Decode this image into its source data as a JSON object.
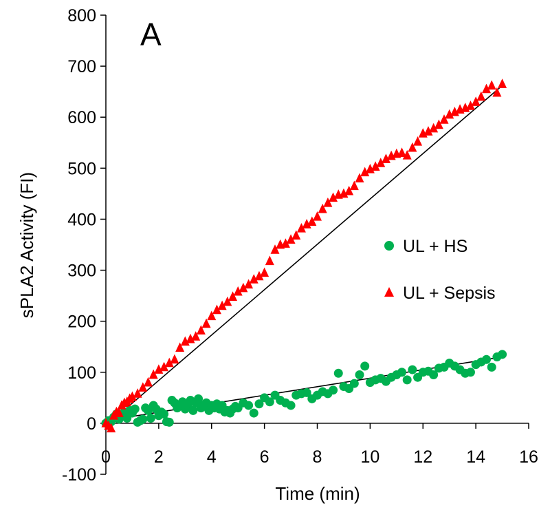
{
  "chart_data": {
    "type": "scatter",
    "panel_label": "A",
    "title": "",
    "xlabel": "Time (min)",
    "ylabel": "sPLA2 Activity (FI)",
    "xlim": [
      0,
      16
    ],
    "ylim": [
      -100,
      800
    ],
    "x_ticks": [
      0,
      2,
      4,
      6,
      8,
      10,
      12,
      14,
      16
    ],
    "y_ticks": [
      -100,
      0,
      100,
      200,
      300,
      400,
      500,
      600,
      700,
      800
    ],
    "grid": false,
    "legend_position": "right-middle",
    "series": [
      {
        "name": "UL + HS",
        "marker": "circle",
        "color": "#00b050",
        "points": [
          [
            0.0,
            0
          ],
          [
            0.1,
            5
          ],
          [
            0.2,
            3
          ],
          [
            0.3,
            12
          ],
          [
            0.4,
            18
          ],
          [
            0.5,
            8
          ],
          [
            0.6,
            15
          ],
          [
            0.7,
            22
          ],
          [
            0.8,
            10
          ],
          [
            0.9,
            25
          ],
          [
            1.0,
            20
          ],
          [
            1.1,
            28
          ],
          [
            1.2,
            2
          ],
          [
            1.3,
            5
          ],
          [
            1.4,
            8
          ],
          [
            1.5,
            30
          ],
          [
            1.6,
            25
          ],
          [
            1.7,
            10
          ],
          [
            1.8,
            35
          ],
          [
            1.9,
            28
          ],
          [
            2.0,
            15
          ],
          [
            2.1,
            22
          ],
          [
            2.2,
            18
          ],
          [
            2.3,
            3
          ],
          [
            2.4,
            2
          ],
          [
            2.5,
            45
          ],
          [
            2.6,
            40
          ],
          [
            2.7,
            30
          ],
          [
            2.8,
            35
          ],
          [
            2.9,
            42
          ],
          [
            3.0,
            28
          ],
          [
            3.1,
            35
          ],
          [
            3.2,
            45
          ],
          [
            3.3,
            25
          ],
          [
            3.4,
            40
          ],
          [
            3.5,
            48
          ],
          [
            3.6,
            30
          ],
          [
            3.7,
            35
          ],
          [
            3.8,
            40
          ],
          [
            3.9,
            25
          ],
          [
            4.0,
            35
          ],
          [
            4.1,
            30
          ],
          [
            4.2,
            38
          ],
          [
            4.3,
            28
          ],
          [
            4.4,
            35
          ],
          [
            4.5,
            22
          ],
          [
            4.6,
            25
          ],
          [
            4.7,
            20
          ],
          [
            4.8,
            28
          ],
          [
            4.9,
            33
          ],
          [
            5.0,
            30
          ],
          [
            5.2,
            40
          ],
          [
            5.4,
            35
          ],
          [
            5.6,
            20
          ],
          [
            5.8,
            38
          ],
          [
            6.0,
            50
          ],
          [
            6.2,
            42
          ],
          [
            6.4,
            55
          ],
          [
            6.6,
            45
          ],
          [
            6.8,
            40
          ],
          [
            7.0,
            35
          ],
          [
            7.2,
            55
          ],
          [
            7.4,
            58
          ],
          [
            7.6,
            60
          ],
          [
            7.8,
            48
          ],
          [
            8.0,
            55
          ],
          [
            8.2,
            62
          ],
          [
            8.4,
            58
          ],
          [
            8.6,
            65
          ],
          [
            8.8,
            98
          ],
          [
            9.0,
            72
          ],
          [
            9.2,
            68
          ],
          [
            9.4,
            78
          ],
          [
            9.6,
            95
          ],
          [
            9.8,
            112
          ],
          [
            10.0,
            80
          ],
          [
            10.2,
            85
          ],
          [
            10.4,
            88
          ],
          [
            10.6,
            82
          ],
          [
            10.8,
            90
          ],
          [
            11.0,
            95
          ],
          [
            11.2,
            100
          ],
          [
            11.4,
            85
          ],
          [
            11.6,
            105
          ],
          [
            11.8,
            90
          ],
          [
            12.0,
            100
          ],
          [
            12.2,
            102
          ],
          [
            12.4,
            95
          ],
          [
            12.6,
            108
          ],
          [
            12.8,
            110
          ],
          [
            13.0,
            118
          ],
          [
            13.2,
            112
          ],
          [
            13.4,
            105
          ],
          [
            13.6,
            98
          ],
          [
            13.8,
            100
          ],
          [
            14.0,
            115
          ],
          [
            14.2,
            120
          ],
          [
            14.4,
            125
          ],
          [
            14.6,
            110
          ],
          [
            14.8,
            130
          ],
          [
            15.0,
            135
          ]
        ],
        "trendline": [
          [
            0,
            5
          ],
          [
            15,
            130
          ]
        ]
      },
      {
        "name": "UL + Sepsis",
        "marker": "triangle",
        "color": "#ff0000",
        "points": [
          [
            0.0,
            0
          ],
          [
            0.1,
            -5
          ],
          [
            0.2,
            -10
          ],
          [
            0.3,
            15
          ],
          [
            0.4,
            22
          ],
          [
            0.5,
            20
          ],
          [
            0.6,
            35
          ],
          [
            0.7,
            40
          ],
          [
            0.8,
            42
          ],
          [
            0.9,
            48
          ],
          [
            1.0,
            52
          ],
          [
            1.2,
            58
          ],
          [
            1.4,
            70
          ],
          [
            1.6,
            80
          ],
          [
            1.8,
            95
          ],
          [
            2.0,
            105
          ],
          [
            2.2,
            110
          ],
          [
            2.4,
            118
          ],
          [
            2.6,
            125
          ],
          [
            2.8,
            148
          ],
          [
            3.0,
            160
          ],
          [
            3.2,
            165
          ],
          [
            3.4,
            170
          ],
          [
            3.6,
            182
          ],
          [
            3.8,
            195
          ],
          [
            4.0,
            210
          ],
          [
            4.2,
            222
          ],
          [
            4.4,
            230
          ],
          [
            4.6,
            238
          ],
          [
            4.8,
            248
          ],
          [
            5.0,
            258
          ],
          [
            5.2,
            265
          ],
          [
            5.4,
            272
          ],
          [
            5.6,
            282
          ],
          [
            5.8,
            288
          ],
          [
            6.0,
            295
          ],
          [
            6.2,
            318
          ],
          [
            6.4,
            340
          ],
          [
            6.6,
            350
          ],
          [
            6.8,
            352
          ],
          [
            7.0,
            360
          ],
          [
            7.2,
            368
          ],
          [
            7.4,
            382
          ],
          [
            7.6,
            390
          ],
          [
            7.8,
            395
          ],
          [
            8.0,
            405
          ],
          [
            8.2,
            420
          ],
          [
            8.4,
            432
          ],
          [
            8.6,
            442
          ],
          [
            8.8,
            448
          ],
          [
            9.0,
            450
          ],
          [
            9.2,
            455
          ],
          [
            9.4,
            465
          ],
          [
            9.6,
            480
          ],
          [
            9.8,
            492
          ],
          [
            10.0,
            498
          ],
          [
            10.2,
            503
          ],
          [
            10.4,
            510
          ],
          [
            10.6,
            518
          ],
          [
            10.8,
            524
          ],
          [
            11.0,
            528
          ],
          [
            11.2,
            530
          ],
          [
            11.4,
            525
          ],
          [
            11.6,
            540
          ],
          [
            11.8,
            552
          ],
          [
            12.0,
            568
          ],
          [
            12.2,
            572
          ],
          [
            12.4,
            578
          ],
          [
            12.6,
            585
          ],
          [
            12.8,
            595
          ],
          [
            13.0,
            605
          ],
          [
            13.2,
            610
          ],
          [
            13.4,
            615
          ],
          [
            13.6,
            618
          ],
          [
            13.8,
            622
          ],
          [
            14.0,
            630
          ],
          [
            14.2,
            640
          ],
          [
            14.4,
            655
          ],
          [
            14.6,
            662
          ],
          [
            14.8,
            648
          ],
          [
            15.0,
            665
          ]
        ],
        "trendline": [
          [
            0,
            -5
          ],
          [
            15,
            662
          ]
        ]
      }
    ]
  }
}
